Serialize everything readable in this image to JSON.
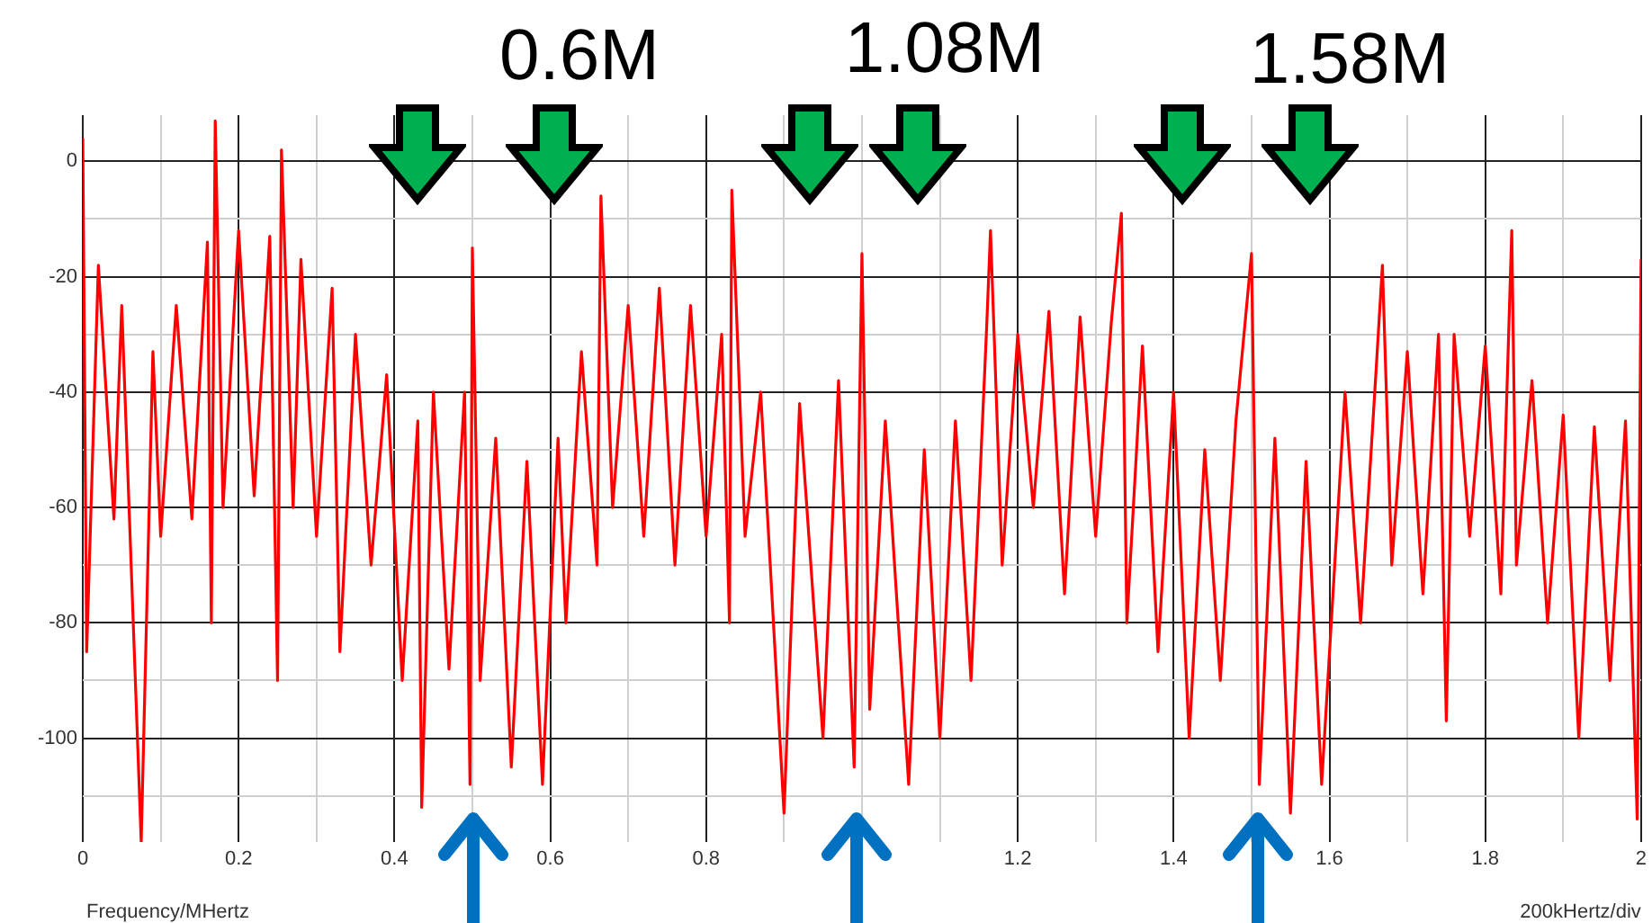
{
  "chart_data": {
    "type": "line",
    "xlabel": "Frequency/MHertz",
    "annotations": [
      "0.6M",
      "1.08M",
      "1.58M",
      "200kHertz/div"
    ],
    "x": [
      0,
      0.005,
      0.02,
      0.04,
      0.05,
      0.075,
      0.09,
      0.1,
      0.12,
      0.14,
      0.16,
      0.165,
      0.17,
      0.18,
      0.2,
      0.22,
      0.24,
      0.25,
      0.255,
      0.27,
      0.28,
      0.3,
      0.32,
      0.33,
      0.35,
      0.37,
      0.39,
      0.41,
      0.43,
      0.435,
      0.45,
      0.47,
      0.49,
      0.497,
      0.5,
      0.51,
      0.53,
      0.55,
      0.57,
      0.59,
      0.61,
      0.62,
      0.64,
      0.66,
      0.665,
      0.68,
      0.7,
      0.72,
      0.74,
      0.76,
      0.78,
      0.8,
      0.82,
      0.83,
      0.833,
      0.85,
      0.87,
      0.9,
      0.92,
      0.95,
      0.97,
      0.99,
      1.0,
      1.01,
      1.03,
      1.06,
      1.08,
      1.1,
      1.12,
      1.14,
      1.16,
      1.165,
      1.18,
      1.2,
      1.22,
      1.24,
      1.26,
      1.28,
      1.3,
      1.32,
      1.333,
      1.34,
      1.36,
      1.38,
      1.4,
      1.42,
      1.44,
      1.46,
      1.48,
      1.5,
      1.51,
      1.53,
      1.55,
      1.57,
      1.59,
      1.62,
      1.64,
      1.66,
      1.668,
      1.68,
      1.7,
      1.72,
      1.74,
      1.75,
      1.76,
      1.78,
      1.8,
      1.82,
      1.834,
      1.84,
      1.86,
      1.88,
      1.9,
      1.92,
      1.94,
      1.96,
      1.98,
      1.995,
      2.0
    ],
    "values": [
      4,
      -85,
      -18,
      -62,
      -25,
      -118,
      -33,
      -65,
      -25,
      -62,
      -14,
      -80,
      7,
      -60,
      -12,
      -58,
      -13,
      -90,
      2,
      -60,
      -17,
      -65,
      -22,
      -85,
      -30,
      -70,
      -37,
      -90,
      -45,
      -112,
      -40,
      -88,
      -40,
      -108,
      -15,
      -90,
      -48,
      -105,
      -52,
      -108,
      -48,
      -80,
      -33,
      -70,
      -6,
      -60,
      -25,
      -65,
      -22,
      -70,
      -25,
      -65,
      -30,
      -80,
      -5,
      -65,
      -40,
      -113,
      -42,
      -100,
      -38,
      -105,
      -16,
      -95,
      -45,
      -108,
      -50,
      -100,
      -45,
      -90,
      -29,
      -12,
      -70,
      -30,
      -60,
      -26,
      -75,
      -27,
      -65,
      -28,
      -9,
      -80,
      -32,
      -85,
      -40,
      -100,
      -50,
      -90,
      -45,
      -16,
      -108,
      -48,
      -113,
      -52,
      -108,
      -40,
      -80,
      -36,
      -18,
      -70,
      -33,
      -75,
      -30,
      -97,
      -30,
      -65,
      -32,
      -75,
      -12,
      -70,
      -38,
      -80,
      -44,
      -100,
      -46,
      -90,
      -45,
      -114,
      -17
    ],
    "color": "#ff0000",
    "marker": "none",
    "line_style": "solid",
    "grid": true,
    "xlim": [
      0,
      2
    ],
    "xticks": [
      0,
      {
        "value": 0.1,
        "label": null
      },
      0.2,
      {
        "value": 0.3,
        "label": null
      },
      0.4,
      {
        "value": 0.5,
        "label": null
      },
      0.6,
      {
        "value": 0.7,
        "label": null
      },
      0.8,
      {
        "value": 0.9,
        "label": null
      },
      {
        "value": 1,
        "label": null
      },
      {
        "value": 1.1,
        "label": null
      },
      1.2,
      {
        "value": 1.3,
        "label": null
      },
      1.4,
      {
        "value": 1.5,
        "label": null
      },
      1.6,
      {
        "value": 1.7,
        "label": null
      },
      1.8,
      {
        "value": 1.9,
        "label": null
      },
      2
    ],
    "ylim": [
      -118,
      8
    ],
    "yticks": [
      {
        "value": -110,
        "label": null
      },
      -100,
      {
        "value": -90,
        "label": null
      },
      -80,
      {
        "value": -70,
        "label": null
      },
      -60,
      {
        "value": -50,
        "label": null
      },
      -40,
      {
        "value": -30,
        "label": null
      },
      -20,
      {
        "value": -10,
        "label": null
      },
      0
    ]
  }
}
